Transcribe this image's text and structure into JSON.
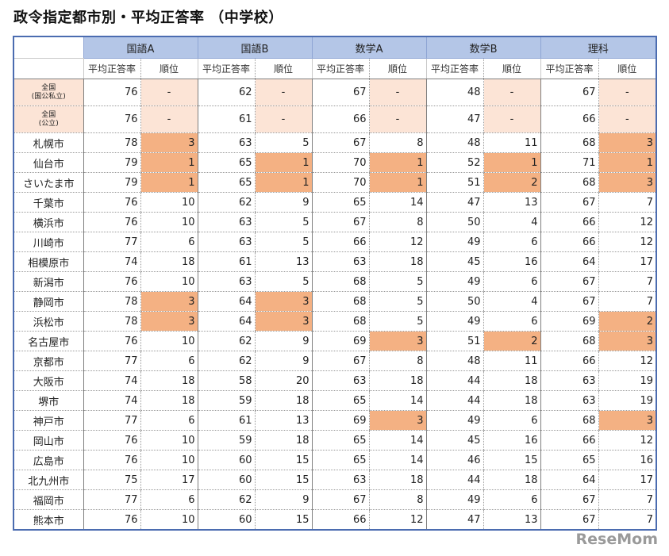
{
  "title": "政令指定都市別・平均正答率 （中学校）",
  "subjects": [
    "国語A",
    "国語B",
    "数学A",
    "数学B",
    "理科"
  ],
  "sub_headers": {
    "score": "平均正答率",
    "rank": "順位"
  },
  "national_rows": [
    {
      "label_line1": "全国",
      "label_line2": "(国公私立)",
      "values": [
        [
          76,
          "-"
        ],
        [
          62,
          "-"
        ],
        [
          67,
          "-"
        ],
        [
          48,
          "-"
        ],
        [
          67,
          "-"
        ]
      ]
    },
    {
      "label_line1": "全国",
      "label_line2": "(公立)",
      "values": [
        [
          76,
          "-"
        ],
        [
          61,
          "-"
        ],
        [
          66,
          "-"
        ],
        [
          47,
          "-"
        ],
        [
          66,
          "-"
        ]
      ]
    }
  ],
  "city_rows": [
    {
      "city": "札幌市",
      "values": [
        [
          78,
          3
        ],
        [
          63,
          5
        ],
        [
          67,
          8
        ],
        [
          48,
          11
        ],
        [
          68,
          3
        ]
      ]
    },
    {
      "city": "仙台市",
      "values": [
        [
          79,
          1
        ],
        [
          65,
          1
        ],
        [
          70,
          1
        ],
        [
          52,
          1
        ],
        [
          71,
          1
        ]
      ]
    },
    {
      "city": "さいたま市",
      "values": [
        [
          79,
          1
        ],
        [
          65,
          1
        ],
        [
          70,
          1
        ],
        [
          51,
          2
        ],
        [
          68,
          3
        ]
      ]
    },
    {
      "city": "千葉市",
      "values": [
        [
          76,
          10
        ],
        [
          62,
          9
        ],
        [
          65,
          14
        ],
        [
          47,
          13
        ],
        [
          67,
          7
        ]
      ]
    },
    {
      "city": "横浜市",
      "values": [
        [
          76,
          10
        ],
        [
          63,
          5
        ],
        [
          67,
          8
        ],
        [
          50,
          4
        ],
        [
          66,
          12
        ]
      ]
    },
    {
      "city": "川崎市",
      "values": [
        [
          77,
          6
        ],
        [
          63,
          5
        ],
        [
          66,
          12
        ],
        [
          49,
          6
        ],
        [
          66,
          12
        ]
      ]
    },
    {
      "city": "相模原市",
      "values": [
        [
          74,
          18
        ],
        [
          61,
          13
        ],
        [
          63,
          18
        ],
        [
          45,
          16
        ],
        [
          64,
          17
        ]
      ]
    },
    {
      "city": "新潟市",
      "values": [
        [
          76,
          10
        ],
        [
          63,
          5
        ],
        [
          68,
          5
        ],
        [
          49,
          6
        ],
        [
          67,
          7
        ]
      ]
    },
    {
      "city": "静岡市",
      "values": [
        [
          78,
          3
        ],
        [
          64,
          3
        ],
        [
          68,
          5
        ],
        [
          50,
          4
        ],
        [
          67,
          7
        ]
      ]
    },
    {
      "city": "浜松市",
      "values": [
        [
          78,
          3
        ],
        [
          64,
          3
        ],
        [
          68,
          5
        ],
        [
          49,
          6
        ],
        [
          69,
          2
        ]
      ]
    },
    {
      "city": "名古屋市",
      "values": [
        [
          76,
          10
        ],
        [
          62,
          9
        ],
        [
          69,
          3
        ],
        [
          51,
          2
        ],
        [
          68,
          3
        ]
      ]
    },
    {
      "city": "京都市",
      "values": [
        [
          77,
          6
        ],
        [
          62,
          9
        ],
        [
          67,
          8
        ],
        [
          48,
          11
        ],
        [
          66,
          12
        ]
      ]
    },
    {
      "city": "大阪市",
      "values": [
        [
          74,
          18
        ],
        [
          58,
          20
        ],
        [
          63,
          18
        ],
        [
          44,
          18
        ],
        [
          63,
          19
        ]
      ]
    },
    {
      "city": "堺市",
      "values": [
        [
          74,
          18
        ],
        [
          59,
          18
        ],
        [
          65,
          14
        ],
        [
          44,
          18
        ],
        [
          63,
          19
        ]
      ]
    },
    {
      "city": "神戸市",
      "values": [
        [
          77,
          6
        ],
        [
          61,
          13
        ],
        [
          69,
          3
        ],
        [
          49,
          6
        ],
        [
          68,
          3
        ]
      ]
    },
    {
      "city": "岡山市",
      "values": [
        [
          76,
          10
        ],
        [
          59,
          18
        ],
        [
          65,
          14
        ],
        [
          45,
          16
        ],
        [
          66,
          12
        ]
      ]
    },
    {
      "city": "広島市",
      "values": [
        [
          76,
          10
        ],
        [
          60,
          15
        ],
        [
          65,
          14
        ],
        [
          46,
          15
        ],
        [
          65,
          16
        ]
      ]
    },
    {
      "city": "北九州市",
      "values": [
        [
          75,
          17
        ],
        [
          60,
          15
        ],
        [
          63,
          18
        ],
        [
          44,
          18
        ],
        [
          64,
          17
        ]
      ]
    },
    {
      "city": "福岡市",
      "values": [
        [
          77,
          6
        ],
        [
          62,
          9
        ],
        [
          67,
          8
        ],
        [
          49,
          6
        ],
        [
          67,
          7
        ]
      ]
    },
    {
      "city": "熊本市",
      "values": [
        [
          76,
          10
        ],
        [
          60,
          15
        ],
        [
          66,
          12
        ],
        [
          47,
          13
        ],
        [
          67,
          7
        ]
      ]
    }
  ],
  "highlight": {
    "top_rank_max": 3,
    "color": "#f4b183",
    "national_color": "#fce4d6",
    "header_color": "#b4c6e7"
  },
  "logo": "ReseMom"
}
